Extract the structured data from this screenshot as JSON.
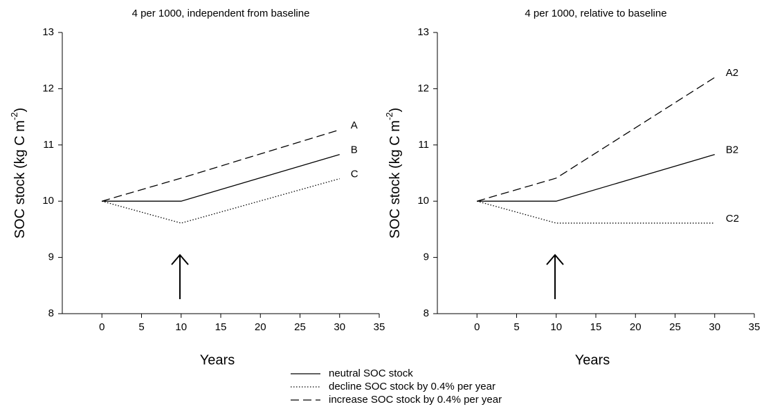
{
  "chart_data": [
    {
      "type": "line",
      "title": "4 per 1000, independent from baseline",
      "xlabel": "Years",
      "ylabel": [
        "SOC stock (kg C m",
        "-2",
        ")"
      ],
      "x": [
        0,
        10,
        30
      ],
      "xlim": [
        -5,
        35
      ],
      "xticks": [
        0,
        5,
        10,
        15,
        20,
        25,
        30,
        35
      ],
      "ylim": [
        8,
        13
      ],
      "yticks": [
        8,
        9,
        10,
        11,
        12,
        13
      ],
      "series": [
        {
          "name": "neutral SOC stock",
          "color": "#000000",
          "style": "solid",
          "label": "B",
          "values": [
            10,
            10,
            10.83
          ]
        },
        {
          "name": "decline SOC stock by 0.4% per year",
          "color": "#000000",
          "style": "dotted",
          "label": "C",
          "values": [
            10,
            9.61,
            10.4
          ]
        },
        {
          "name": "increase SOC stock by 0.4% per year",
          "color": "#000000",
          "style": "dashed",
          "label": "A",
          "values": [
            10,
            10.41,
            11.27
          ]
        }
      ]
    },
    {
      "type": "line",
      "title": "4 per 1000, relative to baseline",
      "xlabel": "Years",
      "ylabel": [
        "SOC stock (kg C m",
        "-2",
        ")"
      ],
      "x": [
        0,
        10,
        30
      ],
      "xlim": [
        -5,
        35
      ],
      "xticks": [
        0,
        5,
        10,
        15,
        20,
        25,
        30,
        35
      ],
      "ylim": [
        8,
        13
      ],
      "yticks": [
        8,
        9,
        10,
        11,
        12,
        13
      ],
      "series": [
        {
          "color": "#000000",
          "style": "solid",
          "label": "B2",
          "values": [
            10,
            10,
            10.83
          ]
        },
        {
          "color": "#000000",
          "style": "dotted",
          "label": "C2",
          "values": [
            10,
            9.61,
            9.61
          ]
        },
        {
          "color": "#000000",
          "style": "dashed",
          "label": "A2",
          "values": [
            10,
            10.41,
            12.2
          ]
        }
      ]
    }
  ]
}
